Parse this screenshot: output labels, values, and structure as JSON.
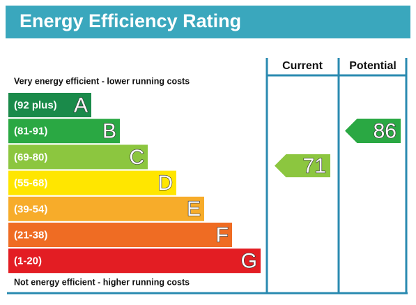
{
  "header": {
    "title": "Energy Efficiency Rating",
    "color": "#3aa7bd"
  },
  "top_label": "Very energy efficient - lower running costs",
  "bottom_label": "Not energy efficient - higher running costs",
  "columns": [
    "Current",
    "Potential"
  ],
  "bands": [
    {
      "range": "(92 plus)",
      "letter": "A",
      "color": "#1a8a4a"
    },
    {
      "range": "(81-91)",
      "letter": "B",
      "color": "#2aa843"
    },
    {
      "range": "(69-80)",
      "letter": "C",
      "color": "#8cc63f"
    },
    {
      "range": "(55-68)",
      "letter": "D",
      "color": "#ffe600"
    },
    {
      "range": "(39-54)",
      "letter": "E",
      "color": "#f7ac2a"
    },
    {
      "range": "(21-38)",
      "letter": "F",
      "color": "#ef6c23"
    },
    {
      "range": "(1-20)",
      "letter": "G",
      "color": "#e31d23"
    }
  ],
  "current": {
    "value": "71",
    "color": "#8cc63f"
  },
  "potential": {
    "value": "86",
    "color": "#2aa843"
  }
}
